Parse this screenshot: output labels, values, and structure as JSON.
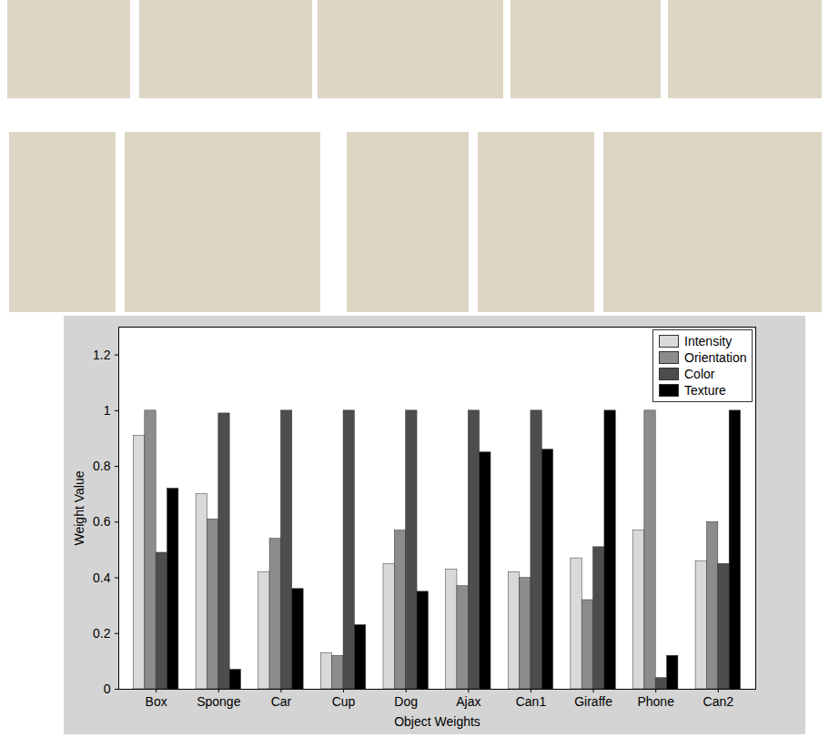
{
  "chart_data": {
    "type": "bar",
    "x_label": "Object Weights",
    "y_label": "Weight Value",
    "categories": [
      "Box",
      "Sponge",
      "Car",
      "Cup",
      "Dog",
      "Ajax",
      "Can1",
      "Giraffe",
      "Phone",
      "Can2"
    ],
    "series": [
      {
        "name": "Intensity",
        "color": "#d9d9d9",
        "values": [
          0.91,
          0.7,
          0.42,
          0.13,
          0.45,
          0.43,
          0.42,
          0.47,
          0.57,
          0.46
        ]
      },
      {
        "name": "Orientation",
        "color": "#8c8c8c",
        "values": [
          1.0,
          0.61,
          0.54,
          0.12,
          0.57,
          0.37,
          0.4,
          0.32,
          1.0,
          0.6
        ]
      },
      {
        "name": "Color",
        "color": "#4d4d4d",
        "values": [
          0.49,
          0.99,
          1.0,
          1.0,
          1.0,
          1.0,
          1.0,
          0.51,
          0.04,
          0.45
        ]
      },
      {
        "name": "Texture",
        "color": "#000000",
        "values": [
          0.72,
          0.07,
          0.36,
          0.23,
          0.35,
          0.85,
          0.86,
          1.0,
          0.12,
          1.0
        ]
      }
    ],
    "ylim": [
      0,
      1.3
    ],
    "yticks": [
      0,
      0.2,
      0.4,
      0.6,
      0.8,
      1,
      1.2
    ],
    "grid": false,
    "legend": "top-right"
  }
}
